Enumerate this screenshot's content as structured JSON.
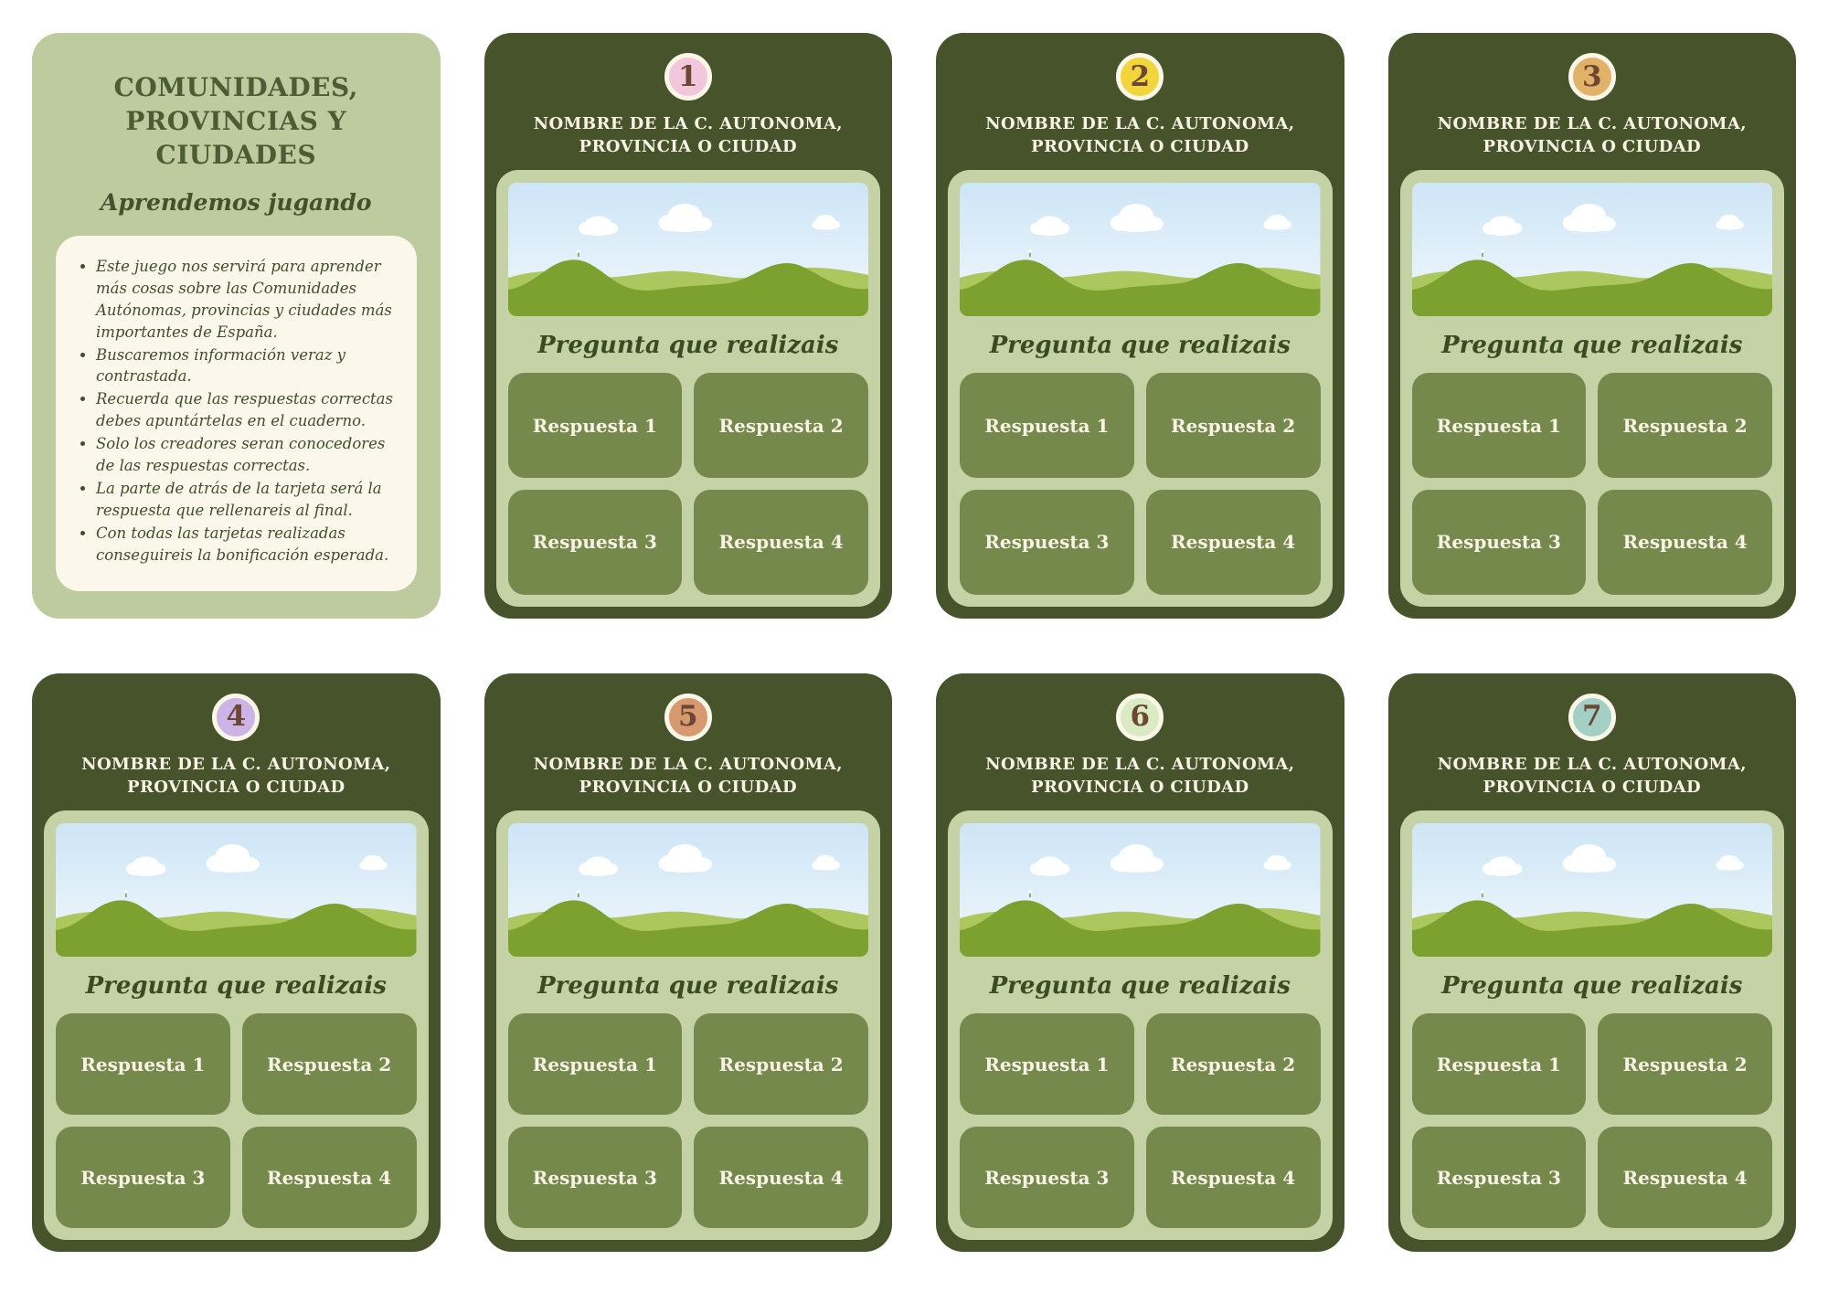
{
  "intro": {
    "title": "COMUNIDADES, PROVINCIAS Y CIUDADES",
    "subtitle": "Aprendemos jugando",
    "bullets": [
      "Este juego nos servirá para aprender más cosas sobre las Comunidades Autónomas, provincias y ciudades más importantes de España.",
      "Buscaremos información veraz y contrastada.",
      "Recuerda que las respuestas correctas debes apuntártelas en el cuaderno.",
      "Solo los creadores seran conocedores de las respuestas correctas.",
      "La parte de atrás de la tarjeta será la respuesta que rellenareis al final.",
      "Con todas las tarjetas realizadas conseguireis la bonificación esperada."
    ]
  },
  "cards": [
    {
      "number": "1",
      "badge_color": "#f3c7db",
      "name_label": "NOMBRE DE LA C. AUTONOMA, PROVINCIA O CIUDAD",
      "question": "Pregunta que realizais",
      "answers": [
        "Respuesta 1",
        "Respuesta 2",
        "Respuesta 3",
        "Respuesta 4"
      ]
    },
    {
      "number": "2",
      "badge_color": "#f2d53a",
      "name_label": "NOMBRE DE LA C. AUTONOMA, PROVINCIA O CIUDAD",
      "question": "Pregunta que realizais",
      "answers": [
        "Respuesta 1",
        "Respuesta 2",
        "Respuesta 3",
        "Respuesta 4"
      ]
    },
    {
      "number": "3",
      "badge_color": "#e3b269",
      "name_label": "NOMBRE DE LA C. AUTONOMA, PROVINCIA O CIUDAD",
      "question": "Pregunta que realizais",
      "answers": [
        "Respuesta 1",
        "Respuesta 2",
        "Respuesta 3",
        "Respuesta 4"
      ]
    },
    {
      "number": "4",
      "badge_color": "#ccb4e6",
      "name_label": "NOMBRE DE LA C. AUTONOMA, PROVINCIA O CIUDAD",
      "question": "Pregunta que realizais",
      "answers": [
        "Respuesta 1",
        "Respuesta 2",
        "Respuesta 3",
        "Respuesta 4"
      ]
    },
    {
      "number": "5",
      "badge_color": "#d79a70",
      "name_label": "NOMBRE DE LA C. AUTONOMA, PROVINCIA O CIUDAD",
      "question": "Pregunta que realizais",
      "answers": [
        "Respuesta 1",
        "Respuesta 2",
        "Respuesta 3",
        "Respuesta 4"
      ]
    },
    {
      "number": "6",
      "badge_color": "#daebc4",
      "name_label": "NOMBRE DE LA C. AUTONOMA, PROVINCIA O CIUDAD",
      "question": "Pregunta que realizais",
      "answers": [
        "Respuesta 1",
        "Respuesta 2",
        "Respuesta 3",
        "Respuesta 4"
      ]
    },
    {
      "number": "7",
      "badge_color": "#a2d0c5",
      "name_label": "NOMBRE DE LA C. AUTONOMA, PROVINCIA O CIUDAD",
      "question": "Pregunta que realizais",
      "answers": [
        "Respuesta 1",
        "Respuesta 2",
        "Respuesta 3",
        "Respuesta 4"
      ]
    }
  ],
  "colors": {
    "page_bg": "#ffffff",
    "card_bg": "#47532a",
    "panel_bg": "#c5d2a6",
    "answer_bg": "#75894d",
    "intro_bg": "#bdcb9e",
    "rules_box_bg": "#fbf7eb",
    "cream_text": "#f8f3e5",
    "dark_text": "#3f4e2a",
    "title_text": "#4d5c35",
    "badge_number": "#6c4733",
    "badge_ring": "#faf6e8",
    "sky_top": "#cde5f6",
    "sky_bottom": "#f1f8fc",
    "hill_back": "#adc75f",
    "hill_front": "#7da12f",
    "cloud": "#ffffff"
  }
}
